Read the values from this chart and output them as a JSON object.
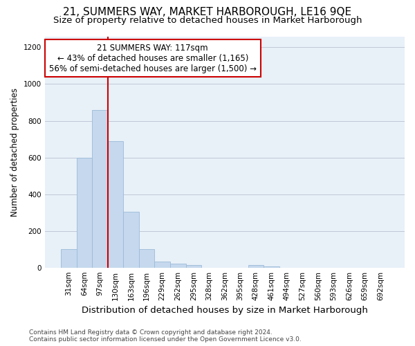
{
  "title": "21, SUMMERS WAY, MARKET HARBOROUGH, LE16 9QE",
  "subtitle": "Size of property relative to detached houses in Market Harborough",
  "xlabel": "Distribution of detached houses by size in Market Harborough",
  "ylabel": "Number of detached properties",
  "footer_line1": "Contains HM Land Registry data © Crown copyright and database right 2024.",
  "footer_line2": "Contains public sector information licensed under the Open Government Licence v3.0.",
  "categories": [
    "31sqm",
    "64sqm",
    "97sqm",
    "130sqm",
    "163sqm",
    "196sqm",
    "229sqm",
    "262sqm",
    "295sqm",
    "328sqm",
    "362sqm",
    "395sqm",
    "428sqm",
    "461sqm",
    "494sqm",
    "527sqm",
    "560sqm",
    "593sqm",
    "626sqm",
    "659sqm",
    "692sqm"
  ],
  "bar_values": [
    100,
    600,
    860,
    690,
    305,
    100,
    32,
    20,
    12,
    0,
    0,
    0,
    15,
    5,
    0,
    0,
    0,
    0,
    0,
    0,
    0
  ],
  "bar_color": "#c5d8ed",
  "bar_edge_color": "#9bbbd8",
  "vline_x": 3.0,
  "vline_color": "#cc0000",
  "annotation_text": "21 SUMMERS WAY: 117sqm\n← 43% of detached houses are smaller (1,165)\n56% of semi-detached houses are larger (1,500) →",
  "annotation_box_color": "#ffffff",
  "annotation_box_edge": "#cc0000",
  "ylim": [
    0,
    1260
  ],
  "yticks": [
    0,
    200,
    400,
    600,
    800,
    1000,
    1200
  ],
  "plot_bg_color": "#e8f0f8",
  "background_color": "#ffffff",
  "grid_color": "#c0c8d8",
  "title_fontsize": 11,
  "subtitle_fontsize": 9.5,
  "xlabel_fontsize": 9.5,
  "ylabel_fontsize": 8.5,
  "tick_fontsize": 7.5,
  "annotation_fontsize": 8.5,
  "footer_fontsize": 6.5
}
